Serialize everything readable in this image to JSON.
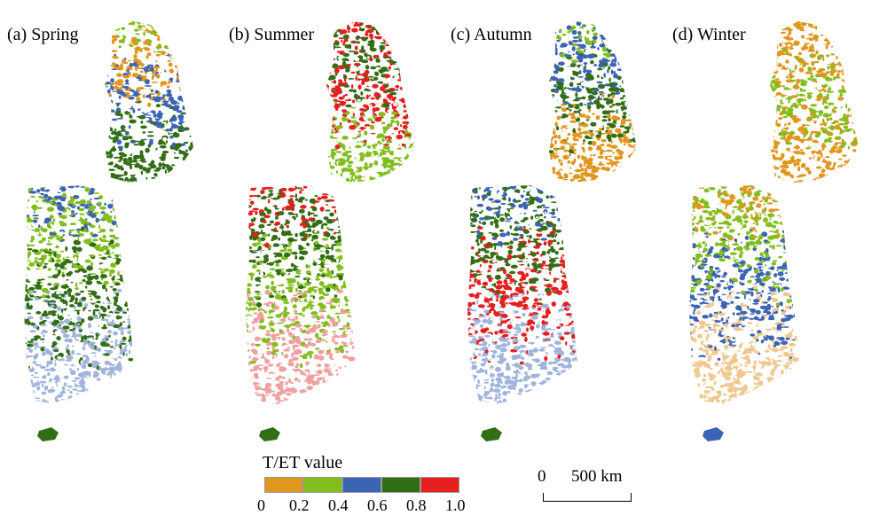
{
  "panels": [
    {
      "label": "(a) Spring",
      "north": [
        "#82be1e",
        "#e1961e",
        "#3c64b4",
        "#326e14"
      ],
      "south": [
        "#3c64b4",
        "#82be1e",
        "#326e14",
        "#a0b4dc"
      ],
      "island": "#326e14"
    },
    {
      "label": "(b) Summer",
      "north": [
        "#e61e1e",
        "#326e14",
        "#e61e1e",
        "#82be1e"
      ],
      "south": [
        "#e61e1e",
        "#326e14",
        "#82be1e",
        "#f0a0a0"
      ],
      "island": "#326e14"
    },
    {
      "label": "(c) Autumn",
      "north": [
        "#82be1e",
        "#3c64b4",
        "#326e14",
        "#e1961e"
      ],
      "south": [
        "#3c64b4",
        "#326e14",
        "#e61e1e",
        "#a0b4dc"
      ],
      "island": "#326e14"
    },
    {
      "label": "(d) Winter",
      "north": [
        "#e1961e",
        "#e1961e",
        "#82be1e",
        "#e1961e"
      ],
      "south": [
        "#e1961e",
        "#82be1e",
        "#3c64b4",
        "#f0c890"
      ],
      "island": "#3c64b4"
    }
  ],
  "legend": {
    "title": "T/ET value",
    "colors": [
      "#e1961e",
      "#82be1e",
      "#3c64b4",
      "#326e14",
      "#e61e1e"
    ],
    "ticks": [
      "0",
      "0.2",
      "0.4",
      "0.6",
      "0.8",
      "1.0"
    ]
  },
  "scale_bar": {
    "zero": "0",
    "label": "500 km"
  }
}
